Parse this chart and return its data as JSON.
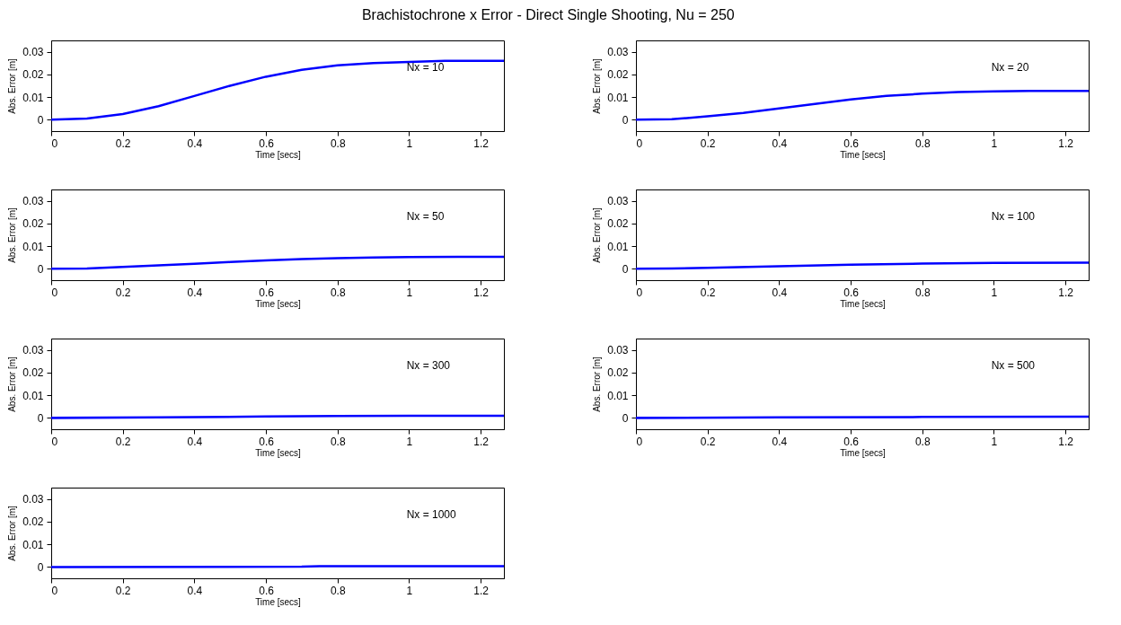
{
  "chart_data": [
    {
      "type": "line",
      "title": "Brachistochrone x Error - Direct Single Shooting, Nu = 250",
      "xlabel": "Time [secs]",
      "ylabel": "Abs. Error [m]",
      "annotations": [
        "Nx = 10"
      ],
      "x": [
        0,
        0.1,
        0.2,
        0.3,
        0.4,
        0.5,
        0.6,
        0.7,
        0.8,
        0.9,
        1.0,
        1.1,
        1.2,
        1.265
      ],
      "series": [
        {
          "color": "#0000ff",
          "values": [
            0,
            0.0005,
            0.0025,
            0.006,
            0.0105,
            0.015,
            0.019,
            0.022,
            0.024,
            0.025,
            0.0255,
            0.026,
            0.026,
            0.026
          ]
        }
      ],
      "xlim": [
        0,
        1.265
      ],
      "ylim": [
        -0.005,
        0.035
      ],
      "xticks": [
        0,
        0.2,
        0.4,
        0.6,
        0.8,
        1,
        1.2
      ],
      "yticks": [
        0,
        0.01,
        0.02,
        0.03
      ],
      "grid": false,
      "line_style": "solid"
    },
    {
      "type": "line",
      "xlabel": "Time [secs]",
      "ylabel": "Abs. Error [m]",
      "annotations": [
        "Nx = 20"
      ],
      "x": [
        0,
        0.1,
        0.2,
        0.3,
        0.4,
        0.5,
        0.6,
        0.7,
        0.8,
        0.9,
        1.0,
        1.1,
        1.265
      ],
      "series": [
        {
          "color": "#0000ff",
          "values": [
            0,
            0.0002,
            0.0015,
            0.003,
            0.005,
            0.007,
            0.009,
            0.0105,
            0.0115,
            0.0122,
            0.0125,
            0.0127,
            0.0127
          ]
        }
      ],
      "xlim": [
        0,
        1.265
      ],
      "ylim": [
        -0.005,
        0.035
      ],
      "xticks": [
        0,
        0.2,
        0.4,
        0.6,
        0.8,
        1,
        1.2
      ],
      "yticks": [
        0,
        0.01,
        0.02,
        0.03
      ],
      "grid": false,
      "line_style": "solid"
    },
    {
      "type": "line",
      "xlabel": "Time [secs]",
      "ylabel": "Abs. Error [m]",
      "annotations": [
        "Nx = 50"
      ],
      "x": [
        0,
        0.1,
        0.2,
        0.3,
        0.4,
        0.5,
        0.6,
        0.7,
        0.8,
        0.9,
        1.0,
        1.265
      ],
      "series": [
        {
          "color": "#0000ff",
          "values": [
            0,
            0.0001,
            0.0008,
            0.0015,
            0.0022,
            0.003,
            0.0037,
            0.0043,
            0.0047,
            0.005,
            0.0052,
            0.0053
          ]
        }
      ],
      "xlim": [
        0,
        1.265
      ],
      "ylim": [
        -0.005,
        0.035
      ],
      "xticks": [
        0,
        0.2,
        0.4,
        0.6,
        0.8,
        1,
        1.2
      ],
      "yticks": [
        0,
        0.01,
        0.02,
        0.03
      ],
      "grid": false,
      "line_style": "solid"
    },
    {
      "type": "line",
      "xlabel": "Time [secs]",
      "ylabel": "Abs. Error [m]",
      "annotations": [
        "Nx = 100"
      ],
      "x": [
        0,
        0.1,
        0.2,
        0.4,
        0.6,
        0.8,
        1.0,
        1.265
      ],
      "series": [
        {
          "color": "#0000ff",
          "values": [
            0,
            0.0001,
            0.0004,
            0.0011,
            0.0018,
            0.0023,
            0.0026,
            0.0027
          ]
        }
      ],
      "xlim": [
        0,
        1.265
      ],
      "ylim": [
        -0.005,
        0.035
      ],
      "xticks": [
        0,
        0.2,
        0.4,
        0.6,
        0.8,
        1,
        1.2
      ],
      "yticks": [
        0,
        0.01,
        0.02,
        0.03
      ],
      "grid": false,
      "line_style": "solid"
    },
    {
      "type": "line",
      "xlabel": "Time [secs]",
      "ylabel": "Abs. Error [m]",
      "annotations": [
        "Nx = 300"
      ],
      "x": [
        0,
        0.3,
        0.6,
        0.8,
        1.0,
        1.265
      ],
      "series": [
        {
          "color": "#0000ff",
          "values": [
            0,
            0.0002,
            0.0006,
            0.0008,
            0.0009,
            0.0009
          ]
        }
      ],
      "xlim": [
        0,
        1.265
      ],
      "ylim": [
        -0.005,
        0.035
      ],
      "xticks": [
        0,
        0.2,
        0.4,
        0.6,
        0.8,
        1,
        1.2
      ],
      "yticks": [
        0,
        0.01,
        0.02,
        0.03
      ],
      "grid": false,
      "line_style": "solid"
    },
    {
      "type": "line",
      "xlabel": "Time [secs]",
      "ylabel": "Abs. Error [m]",
      "annotations": [
        "Nx = 500"
      ],
      "x": [
        0,
        0.4,
        0.8,
        1.265
      ],
      "series": [
        {
          "color": "#0000ff",
          "values": [
            0,
            0.0002,
            0.0004,
            0.0005
          ]
        }
      ],
      "xlim": [
        0,
        1.265
      ],
      "ylim": [
        -0.005,
        0.035
      ],
      "xticks": [
        0,
        0.2,
        0.4,
        0.6,
        0.8,
        1,
        1.2
      ],
      "yticks": [
        0,
        0.01,
        0.02,
        0.03
      ],
      "grid": false,
      "line_style": "solid"
    },
    {
      "type": "line",
      "xlabel": "Time [secs]",
      "ylabel": "Abs. Error [m]",
      "annotations": [
        "Nx = 1000"
      ],
      "x": [
        0,
        0.7,
        0.75,
        1.265
      ],
      "series": [
        {
          "color": "#0000ff",
          "values": [
            0,
            0.0001,
            0.0003,
            0.0003
          ]
        }
      ],
      "xlim": [
        0,
        1.265
      ],
      "ylim": [
        -0.005,
        0.035
      ],
      "xticks": [
        0,
        0.2,
        0.4,
        0.6,
        0.8,
        1,
        1.2
      ],
      "yticks": [
        0,
        0.01,
        0.02,
        0.03
      ],
      "grid": false,
      "line_style": "solid"
    }
  ]
}
